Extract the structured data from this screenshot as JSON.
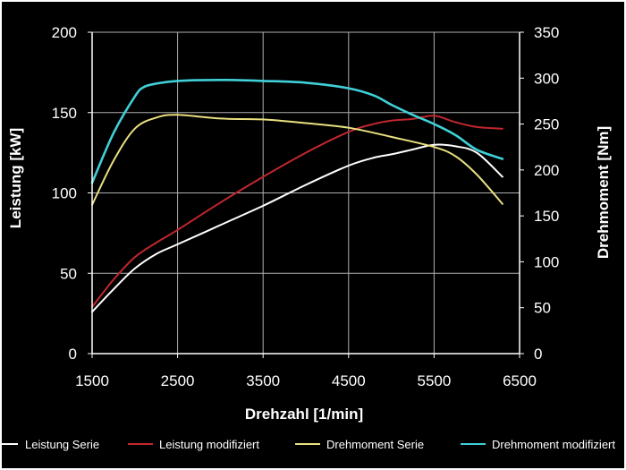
{
  "chart_data": {
    "type": "line",
    "xlabel": "Drehzahl [1/min]",
    "ylabel_left": "Leistung [kW]",
    "ylabel_right": "Drehmoment [Nm]",
    "xlim": [
      1500,
      6500
    ],
    "ylim_left": [
      0,
      200
    ],
    "ylim_right": [
      0,
      350
    ],
    "xticks": [
      "1500",
      "2500",
      "3500",
      "4500",
      "5500",
      "6500"
    ],
    "yticks_left": [
      "0",
      "50",
      "100",
      "150",
      "200"
    ],
    "yticks_right": [
      "0",
      "50",
      "100",
      "150",
      "200",
      "250",
      "300",
      "350"
    ],
    "grid": true,
    "legend_position": "bottom",
    "series": [
      {
        "name": "Leistung Serie",
        "axis": "left",
        "color": "#ffffff",
        "x": [
          1500,
          1750,
          2000,
          2250,
          2500,
          3000,
          3500,
          4000,
          4500,
          4800,
          5000,
          5250,
          5500,
          5750,
          6000,
          6300
        ],
        "y": [
          26,
          40,
          53,
          62,
          68,
          80,
          92,
          105,
          117,
          122,
          124,
          127,
          130,
          129,
          125,
          110
        ]
      },
      {
        "name": "Leistung modifiziert",
        "axis": "left",
        "color": "#c1272d",
        "x": [
          1500,
          1750,
          2000,
          2250,
          2500,
          3000,
          3500,
          4000,
          4500,
          4800,
          5000,
          5250,
          5500,
          5750,
          6000,
          6300
        ],
        "y": [
          29,
          46,
          60,
          69,
          77,
          94,
          110,
          125,
          138,
          143,
          145,
          146,
          148,
          144,
          141,
          140
        ]
      },
      {
        "name": "Drehmoment Serie",
        "axis": "right",
        "color": "#e8e080",
        "x": [
          1500,
          1750,
          2000,
          2250,
          2500,
          3000,
          3500,
          4000,
          4500,
          5000,
          5500,
          5750,
          6000,
          6300
        ],
        "y": [
          162,
          210,
          245,
          257,
          260,
          256,
          255,
          251,
          246,
          236,
          225,
          215,
          195,
          163
        ]
      },
      {
        "name": "Drehmoment modifiziert",
        "axis": "right",
        "color": "#40d0d8",
        "x": [
          1500,
          1750,
          2000,
          2100,
          2250,
          2500,
          3000,
          3500,
          4000,
          4500,
          4800,
          5000,
          5250,
          5500,
          5750,
          6000,
          6300
        ],
        "y": [
          186,
          240,
          280,
          290,
          294,
          297,
          298,
          297,
          295,
          289,
          281,
          271,
          260,
          250,
          238,
          222,
          212
        ]
      }
    ]
  }
}
